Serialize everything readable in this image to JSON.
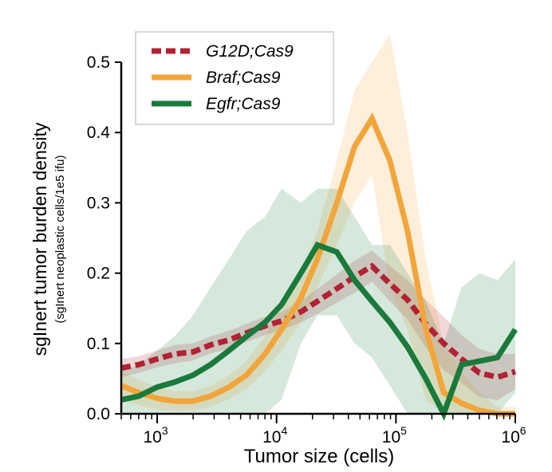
{
  "chart_data": {
    "type": "line",
    "title": "",
    "xlabel": "Tumor size (cells)",
    "ylabel": "sgInert tumor burden density",
    "ylabel_sub": "(sgInert neoplastic cells/1e5 ifu)",
    "x_scale": "log",
    "xlim": [
      500,
      1000000
    ],
    "ylim": [
      0,
      0.5
    ],
    "x_ticks": [
      {
        "value": 1000,
        "base": "10",
        "exp": "3"
      },
      {
        "value": 10000,
        "base": "10",
        "exp": "4"
      },
      {
        "value": 100000,
        "base": "10",
        "exp": "5"
      },
      {
        "value": 1000000,
        "base": "10",
        "exp": "6"
      }
    ],
    "y_ticks": [
      "0.0",
      "0.1",
      "0.2",
      "0.3",
      "0.4",
      "0.5"
    ],
    "legend_position": "top-left",
    "x": [
      500,
      700,
      1000,
      1400,
      2000,
      2800,
      4000,
      5600,
      8000,
      11000,
      16000,
      22000,
      32000,
      45000,
      63000,
      89000,
      125000,
      178000,
      251000,
      355000,
      500000,
      708000,
      1000000
    ],
    "series": [
      {
        "name": "G12D;Cas9",
        "color": "#b22234",
        "style": "dashed",
        "values": [
          0.065,
          0.07,
          0.078,
          0.085,
          0.088,
          0.098,
          0.105,
          0.115,
          0.125,
          0.132,
          0.145,
          0.16,
          0.178,
          0.195,
          0.21,
          0.185,
          0.162,
          0.128,
          0.1,
          0.078,
          0.058,
          0.052,
          0.06
        ],
        "band_upper": [
          0.078,
          0.082,
          0.09,
          0.098,
          0.1,
          0.11,
          0.118,
          0.128,
          0.138,
          0.145,
          0.16,
          0.178,
          0.198,
          0.218,
          0.232,
          0.21,
          0.19,
          0.162,
          0.138,
          0.112,
          0.092,
          0.085,
          0.085
        ],
        "band_lower": [
          0.052,
          0.058,
          0.066,
          0.072,
          0.076,
          0.086,
          0.092,
          0.102,
          0.112,
          0.119,
          0.13,
          0.142,
          0.158,
          0.172,
          0.188,
          0.16,
          0.134,
          0.094,
          0.062,
          0.044,
          0.024,
          0.019,
          0.035
        ]
      },
      {
        "name": "Braf;Cas9",
        "color": "#f2a53a",
        "style": "solid",
        "values": [
          0.04,
          0.03,
          0.022,
          0.018,
          0.018,
          0.025,
          0.038,
          0.055,
          0.085,
          0.12,
          0.165,
          0.22,
          0.3,
          0.38,
          0.42,
          0.36,
          0.26,
          0.12,
          0.03,
          0.015,
          0.005,
          0.0,
          0.0
        ],
        "band_upper": [
          0.06,
          0.048,
          0.038,
          0.032,
          0.032,
          0.04,
          0.055,
          0.075,
          0.11,
          0.15,
          0.2,
          0.26,
          0.36,
          0.46,
          0.5,
          0.54,
          0.4,
          0.22,
          0.1,
          0.06,
          0.03,
          0.01,
          0.01
        ],
        "band_lower": [
          0.02,
          0.012,
          0.006,
          0.004,
          0.004,
          0.01,
          0.021,
          0.035,
          0.06,
          0.09,
          0.13,
          0.18,
          0.24,
          0.3,
          0.34,
          0.18,
          0.12,
          0.02,
          0.0,
          0.0,
          0.0,
          0.0,
          0.0
        ]
      },
      {
        "name": "Egfr;Cas9",
        "color": "#1a7a3c",
        "style": "solid",
        "values": [
          0.02,
          0.025,
          0.038,
          0.045,
          0.055,
          0.07,
          0.09,
          0.11,
          0.13,
          0.155,
          0.2,
          0.24,
          0.23,
          0.19,
          0.16,
          0.13,
          0.095,
          0.05,
          0.0,
          0.07,
          0.075,
          0.08,
          0.12
        ],
        "band_upper": [
          0.06,
          0.07,
          0.09,
          0.11,
          0.14,
          0.18,
          0.22,
          0.26,
          0.28,
          0.32,
          0.3,
          0.32,
          0.32,
          0.28,
          0.24,
          0.24,
          0.2,
          0.16,
          0.1,
          0.18,
          0.2,
          0.19,
          0.22
        ],
        "band_lower": [
          0.0,
          0.0,
          0.0,
          0.0,
          0.0,
          0.0,
          0.0,
          0.0,
          0.0,
          0.02,
          0.1,
          0.14,
          0.14,
          0.1,
          0.08,
          0.04,
          0.0,
          0.0,
          0.0,
          0.0,
          0.0,
          0.0,
          0.03
        ]
      }
    ]
  }
}
